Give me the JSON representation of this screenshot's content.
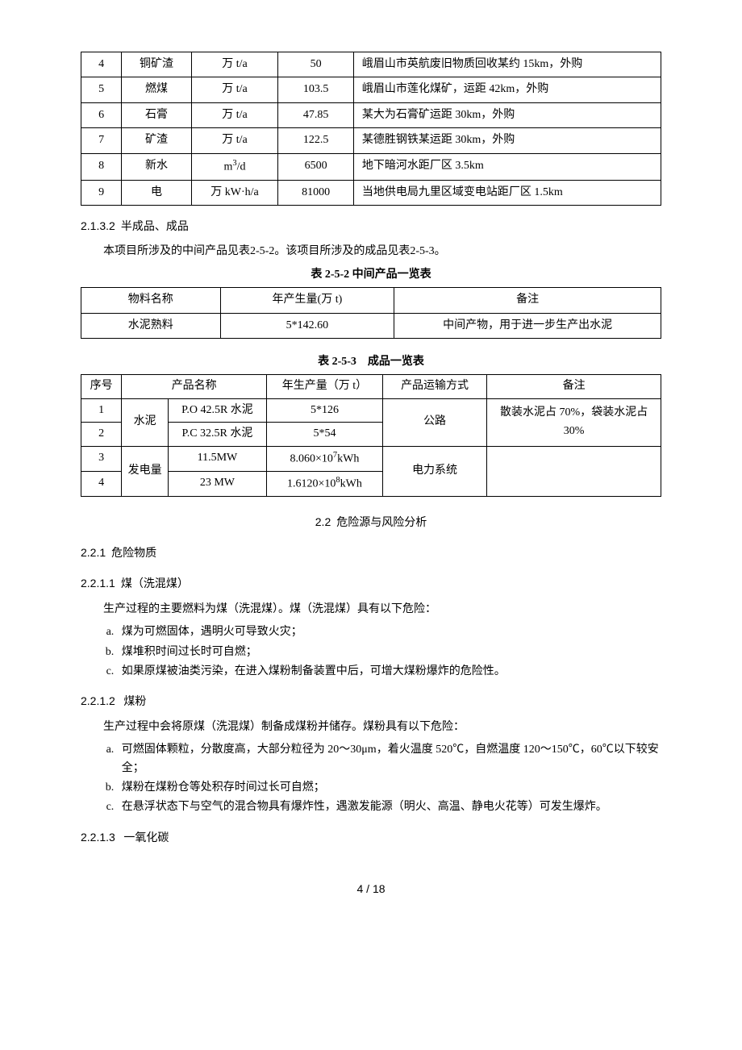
{
  "table1": {
    "rows": [
      {
        "n": "4",
        "name": "铜矿渣",
        "unit": "万 t/a",
        "qty": "50",
        "note": "峨眉山市英航废旧物质回收某约 15km，外购"
      },
      {
        "n": "5",
        "name": "燃煤",
        "unit": "万 t/a",
        "qty": "103.5",
        "note": "峨眉山市莲化煤矿，运距 42km，外购"
      },
      {
        "n": "6",
        "name": "石膏",
        "unit": "万 t/a",
        "qty": "47.85",
        "note": "某大为石膏矿运距 30km，外购"
      },
      {
        "n": "7",
        "name": "矿渣",
        "unit": "万 t/a",
        "qty": "122.5",
        "note": "某德胜钢铁某运距 30km，外购"
      },
      {
        "n": "8",
        "name": "新水",
        "unit_html": "m<sup>3</sup>/d",
        "qty": "6500",
        "note": "地下暗河水距厂区 3.5km"
      },
      {
        "n": "9",
        "name": "电",
        "unit": "万 kW·h/a",
        "qty": "81000",
        "note": "当地供电局九里区域变电站距厂区 1.5km"
      }
    ]
  },
  "sec_2132_num": "2.1.3.2",
  "sec_2132_title": "半成品、成品",
  "para1": "本项目所涉及的中间产品见表2-5-2。该项目所涉及的成品见表2-5-3。",
  "caption252": "表 2-5-2 中间产品一览表",
  "table2": {
    "h1": "物料名称",
    "h2": "年产生量(万 t)",
    "h3": "备注",
    "c1": "水泥熟料",
    "c2": "5*142.60",
    "c3": "中间产物，用于进一步生产出水泥"
  },
  "caption253": "表 2-5-3　成品一览表",
  "table3": {
    "h": {
      "seq": "序号",
      "name": "产品名称",
      "out": "年生产量（万 t）",
      "trans": "产品运输方式",
      "note": "备注"
    },
    "r": {
      "n1": "1",
      "n2": "2",
      "n3": "3",
      "n4": "4",
      "cement": "水泥",
      "po": "P.O 42.5R 水泥",
      "pc": "P.C 32.5R 水泥",
      "v1": "5*126",
      "v2": "5*54",
      "road": "公路",
      "note1": "散装水泥占 70%，袋装水泥占30%",
      "power": "发电量",
      "mw1": "11.5MW",
      "mw2": "23 MW",
      "kwh1_html": "8.060×10<sup>7</sup>kWh",
      "kwh2_html": "1.6120×10<sup>8</sup>kWh",
      "grid": "电力系统"
    }
  },
  "sec22_num": "2.2",
  "sec22_title": "危险源与风险分析",
  "sec221_num": "2.2.1",
  "sec221_title": "危险物质",
  "sec2211_num": "2.2.1.1",
  "sec2211_title": "煤（洗混煤）",
  "para2": "生产过程的主要燃料为煤（洗混煤）。煤（洗混煤）具有以下危险：",
  "list1": {
    "a": "煤为可燃固体，遇明火可导致火灾；",
    "b": "煤堆积时间过长时可自燃；",
    "c": "如果原煤被油类污染，在进入煤粉制备装置中后，可增大煤粉爆炸的危险性。"
  },
  "sec2212_num": "2.2.1.2",
  "sec2212_title": "煤粉",
  "para3": "生产过程中会将原煤（洗混煤）制备成煤粉并储存。煤粉具有以下危险：",
  "list2": {
    "a": "可燃固体颗粒，分散度高，大部分粒径为 20～30μm，着火温度 520℃，自燃温度 120～150℃，60℃以下较安全；",
    "b": "煤粉在煤粉仓等处积存时间过长可自燃；",
    "c": "在悬浮状态下与空气的混合物具有爆炸性，遇激发能源（明火、高温、静电火花等）可发生爆炸。"
  },
  "sec2213_num": "2.2.1.3",
  "sec2213_title": "一氧化碳",
  "page": "4 / 18"
}
